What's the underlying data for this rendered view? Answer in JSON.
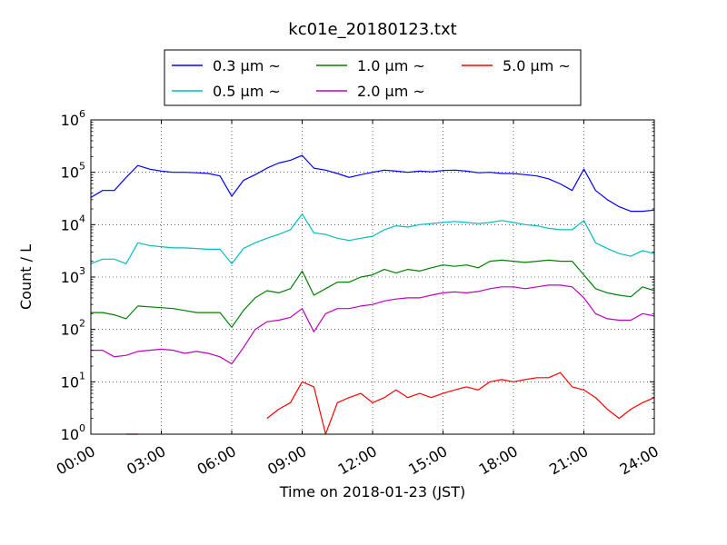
{
  "chart_data": {
    "type": "line",
    "title": "kc01e_20180123.txt",
    "xlabel": "Time on 2018-01-23 (JST)",
    "ylabel": "Count / L",
    "yscale": "log",
    "ylim": [
      1,
      1000000
    ],
    "xlim": [
      "2018-01-23 00:00",
      "2018-01-24 00:00"
    ],
    "grid": true,
    "legend_position": "top-center",
    "x_ticks": [
      "00:00",
      "03:00",
      "06:00",
      "09:00",
      "12:00",
      "15:00",
      "18:00",
      "21:00",
      "24:00"
    ],
    "y_ticks": [
      {
        "base": "10",
        "exp": "0"
      },
      {
        "base": "10",
        "exp": "1"
      },
      {
        "base": "10",
        "exp": "2"
      },
      {
        "base": "10",
        "exp": "3"
      },
      {
        "base": "10",
        "exp": "4"
      },
      {
        "base": "10",
        "exp": "5"
      },
      {
        "base": "10",
        "exp": "6"
      }
    ],
    "x": [
      "00:00",
      "00:30",
      "01:00",
      "01:30",
      "02:00",
      "02:30",
      "03:00",
      "03:30",
      "04:00",
      "04:30",
      "05:00",
      "05:30",
      "06:00",
      "06:30",
      "07:00",
      "07:30",
      "08:00",
      "08:30",
      "09:00",
      "09:30",
      "10:00",
      "10:30",
      "11:00",
      "11:30",
      "12:00",
      "12:30",
      "13:00",
      "13:30",
      "14:00",
      "14:30",
      "15:00",
      "15:30",
      "16:00",
      "16:30",
      "17:00",
      "17:30",
      "18:00",
      "18:30",
      "19:00",
      "19:30",
      "20:00",
      "20:30",
      "21:00",
      "21:30",
      "22:00",
      "22:30",
      "23:00",
      "23:30",
      "24:00"
    ],
    "series": [
      {
        "name": "0.3 μm ~",
        "color": "#0000ff",
        "values": [
          33000,
          45000,
          45000,
          80000,
          135000,
          115000,
          105000,
          100000,
          100000,
          98000,
          95000,
          85000,
          35000,
          70000,
          90000,
          120000,
          150000,
          170000,
          210000,
          120000,
          110000,
          95000,
          80000,
          90000,
          100000,
          110000,
          105000,
          100000,
          105000,
          102000,
          108000,
          110000,
          105000,
          98000,
          100000,
          95000,
          95000,
          90000,
          85000,
          75000,
          60000,
          45000,
          115000,
          45000,
          30000,
          22000,
          18000,
          18000,
          19000
        ]
      },
      {
        "name": "0.5 μm ~",
        "color": "#00bfbf",
        "values": [
          1800,
          2200,
          2200,
          1800,
          4500,
          4000,
          3800,
          3600,
          3600,
          3500,
          3400,
          3400,
          1800,
          3500,
          4500,
          5500,
          6500,
          8000,
          16000,
          7000,
          6500,
          5500,
          5000,
          5500,
          6000,
          8000,
          9500,
          9000,
          10000,
          10500,
          11000,
          11500,
          11000,
          10500,
          11000,
          12000,
          11000,
          10000,
          9500,
          8500,
          8000,
          8000,
          12000,
          4500,
          3500,
          2800,
          2500,
          3200,
          2800
        ]
      },
      {
        "name": "1.0 μm ~",
        "color": "#008000",
        "values": [
          210,
          210,
          190,
          160,
          280,
          270,
          260,
          250,
          230,
          210,
          210,
          210,
          110,
          230,
          400,
          550,
          500,
          600,
          1300,
          450,
          600,
          800,
          800,
          1000,
          1100,
          1400,
          1200,
          1400,
          1300,
          1500,
          1700,
          1600,
          1700,
          1500,
          2000,
          2100,
          2000,
          1900,
          2000,
          2100,
          2000,
          2000,
          1100,
          600,
          500,
          450,
          420,
          650,
          550
        ]
      },
      {
        "name": "2.0 μm ~",
        "color": "#bf00bf",
        "values": [
          40,
          40,
          30,
          32,
          38,
          40,
          42,
          40,
          35,
          38,
          35,
          30,
          22,
          45,
          100,
          140,
          150,
          170,
          250,
          90,
          200,
          250,
          250,
          280,
          300,
          350,
          380,
          400,
          400,
          450,
          500,
          520,
          500,
          530,
          600,
          650,
          650,
          600,
          650,
          700,
          700,
          650,
          400,
          200,
          160,
          150,
          150,
          200,
          180
        ]
      },
      {
        "name": "5.0 μm ~",
        "color": "#ff0000",
        "values": [
          null,
          null,
          null,
          1,
          1,
          null,
          null,
          null,
          1,
          null,
          1,
          null,
          null,
          1,
          null,
          2,
          3,
          4,
          10,
          8,
          1,
          4,
          5,
          6,
          4,
          5,
          7,
          5,
          6,
          5,
          6,
          7,
          8,
          7,
          10,
          11,
          10,
          11,
          12,
          12,
          15,
          8,
          7,
          5,
          3,
          2,
          3,
          4,
          5
        ]
      }
    ]
  }
}
